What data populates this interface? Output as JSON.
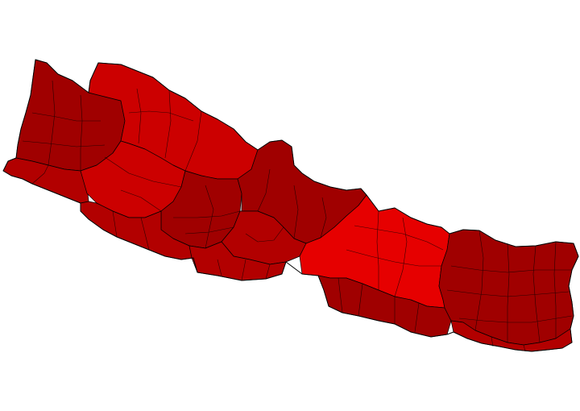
{
  "map": {
    "region": "Nepal",
    "subdivision": "districts",
    "legend": null,
    "colors": {
      "background": "#ffffff",
      "outline": "#000000",
      "darkest": "#8f0000",
      "dark": "#a00000",
      "medium": "#b20000",
      "bright": "#cc0000",
      "brightest": "#e60000"
    },
    "zones": [
      {
        "id": "far-west-hills",
        "shade": "dark"
      },
      {
        "id": "far-west-terai",
        "shade": "medium"
      },
      {
        "id": "karnali-north",
        "shade": "bright"
      },
      {
        "id": "karnali-central",
        "shade": "bright"
      },
      {
        "id": "mid-west-hills",
        "shade": "dark"
      },
      {
        "id": "mid-west-terai",
        "shade": "medium"
      },
      {
        "id": "western-north",
        "shade": "dark"
      },
      {
        "id": "western-hills",
        "shade": "medium"
      },
      {
        "id": "western-terai",
        "shade": "medium"
      },
      {
        "id": "central-hills",
        "shade": "brightest"
      },
      {
        "id": "central-terai",
        "shade": "dark"
      },
      {
        "id": "eastern-hills",
        "shade": "dark"
      },
      {
        "id": "eastern-terai",
        "shade": "medium"
      }
    ]
  }
}
